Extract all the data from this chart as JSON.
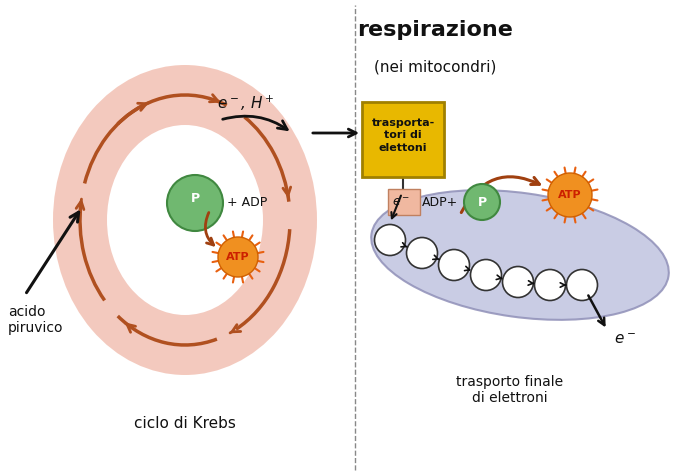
{
  "bg_color": "#ffffff",
  "title1": "respirazione",
  "title2": "(nei mitocondri)",
  "krebs_label": "ciclo di Krebs",
  "acido_label": "acido\npiruvico",
  "trasporta_label": "trasporta-\ntori di\nelettoni",
  "trasporto_label": "trasporto finale\ndi elettroni",
  "arrow_color": "#a04010",
  "krebs_arrow_color": "#b05020",
  "yellow_box_color": "#e8b800",
  "yellow_box_border": "#a08000",
  "mito_color": "#b8bce0",
  "ring_color_fill": "#f0b8a8",
  "p_green": "#70b870",
  "p_green_border": "#408840",
  "atp_orange": "#f07818",
  "atp_red_text": "#cc2000"
}
